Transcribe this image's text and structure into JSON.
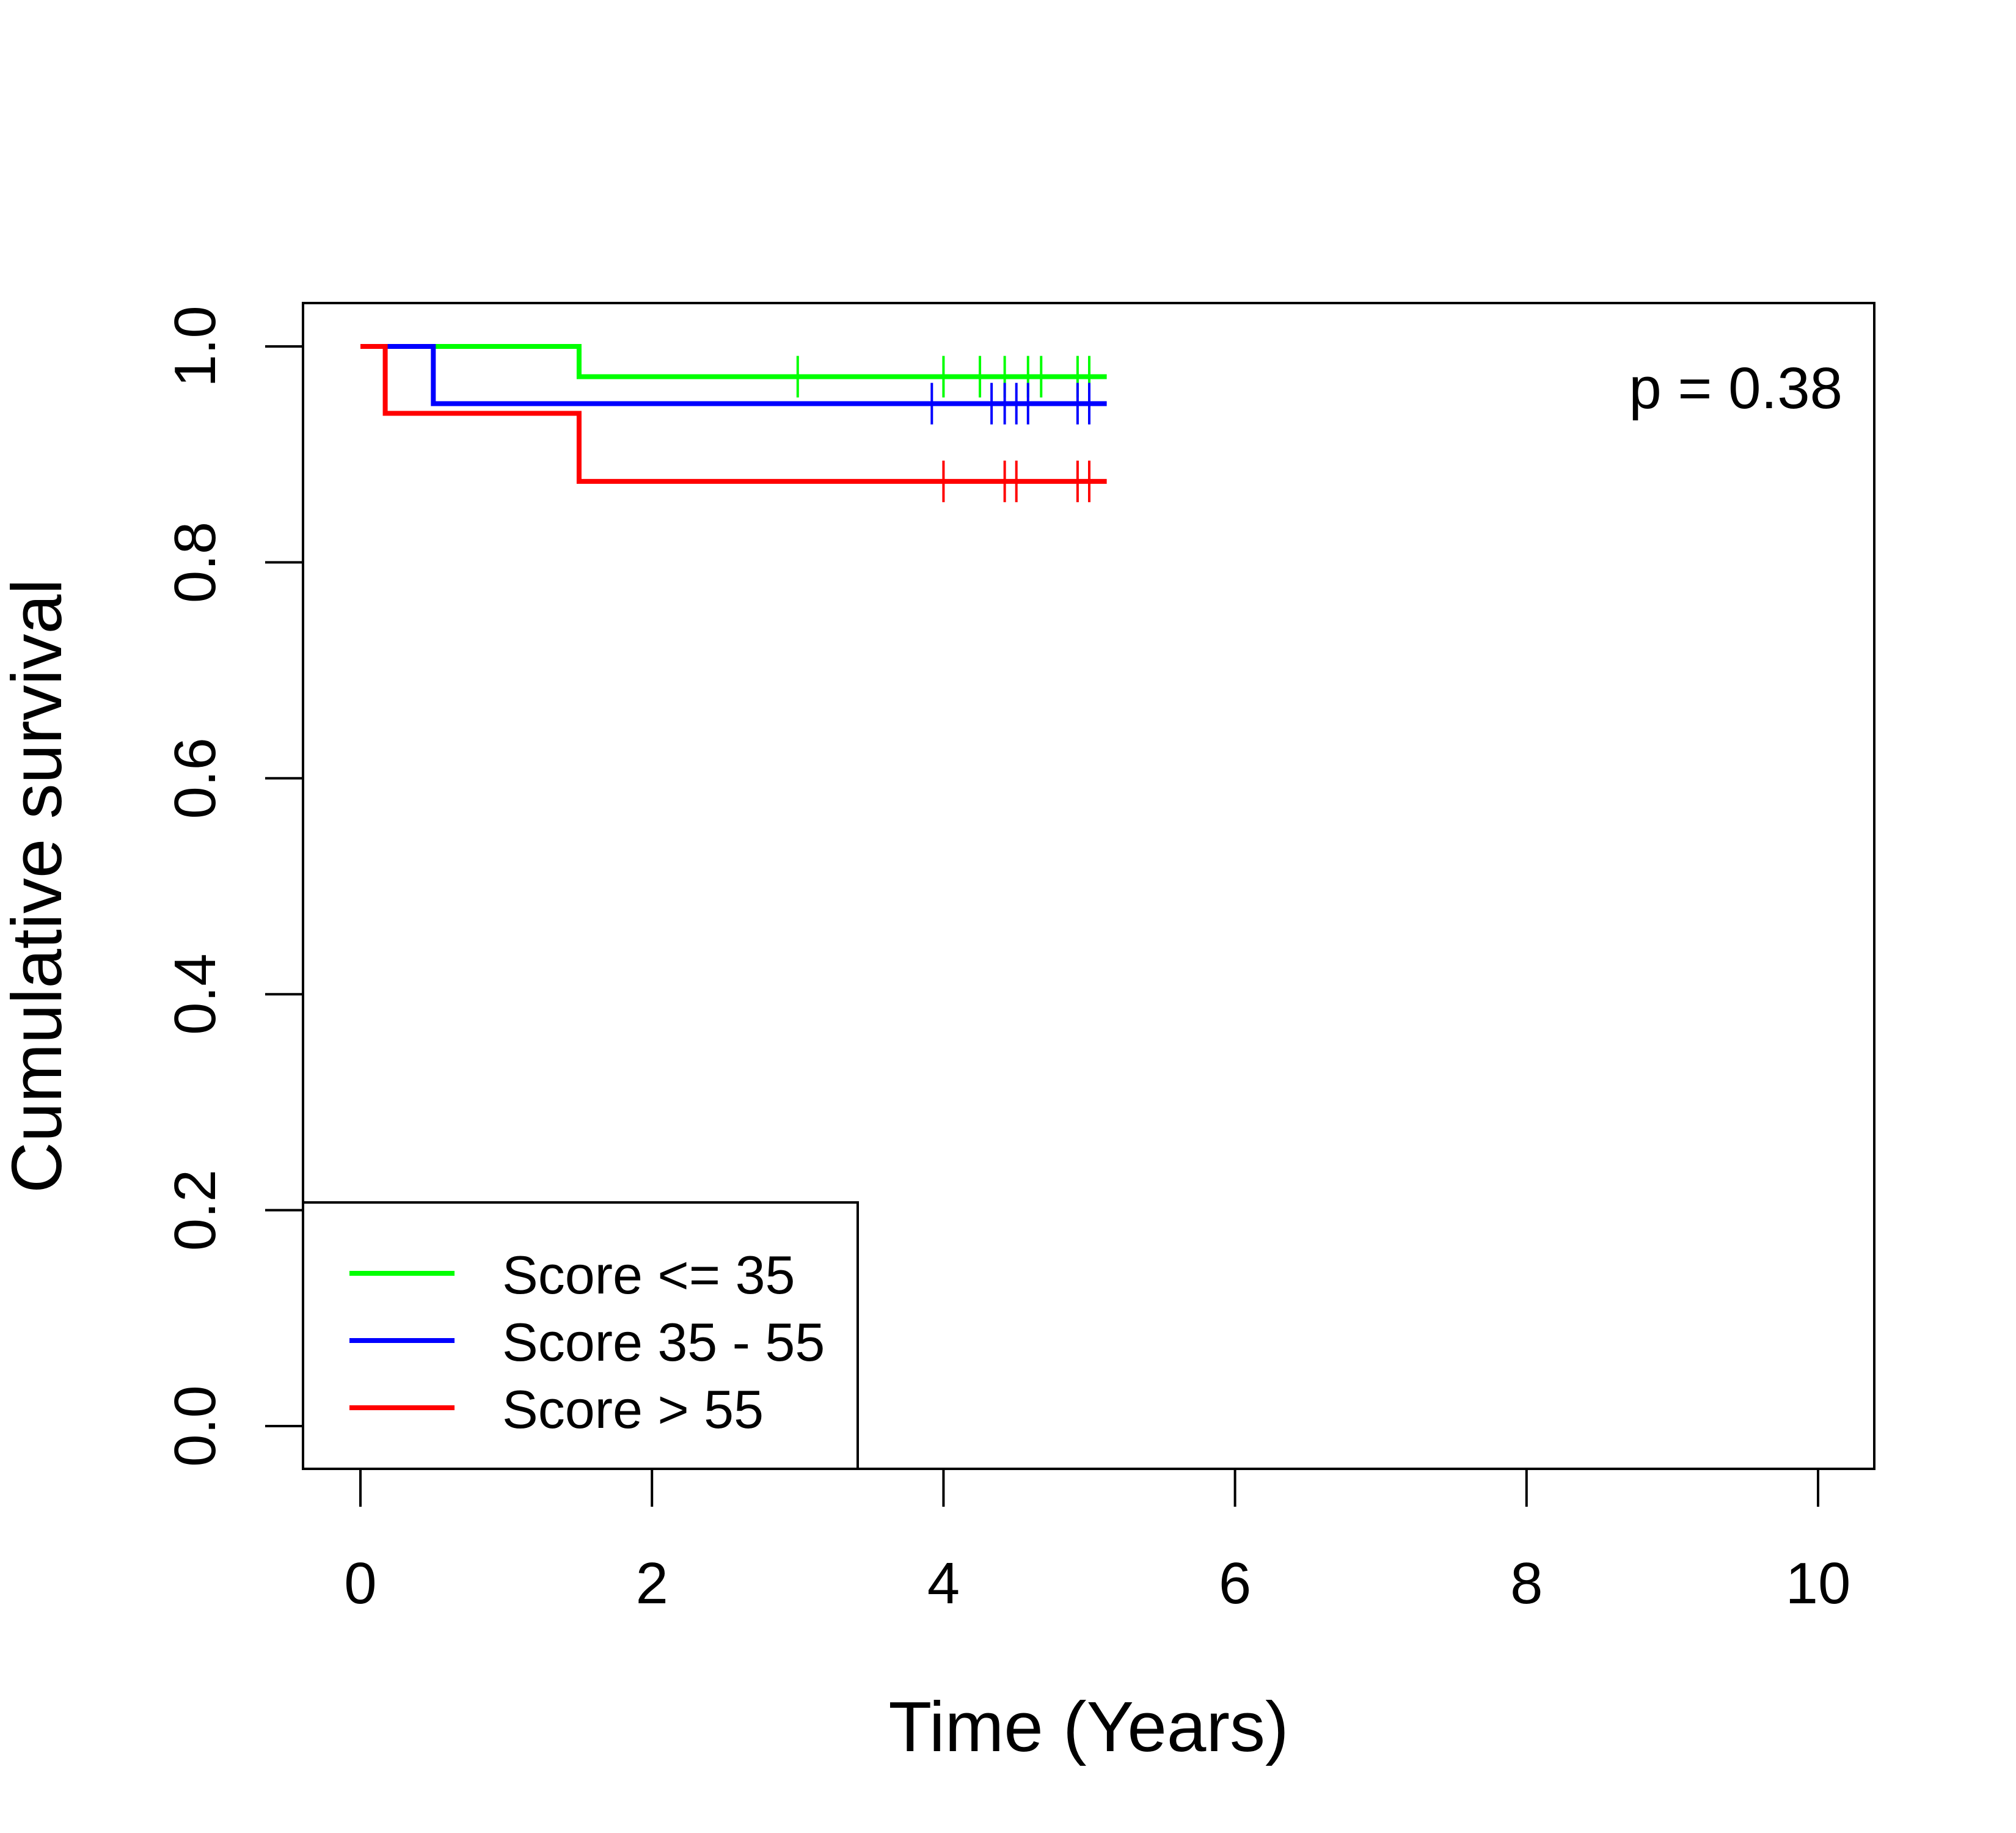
{
  "chart_data": {
    "type": "line",
    "subtype": "kaplan-meier step",
    "xlabel": "Time (Years)",
    "ylabel": "Cumulative survival",
    "xlim": [
      0,
      10
    ],
    "ylim": [
      0,
      1
    ],
    "xticks": [
      0,
      2,
      4,
      6,
      8,
      10
    ],
    "yticks": [
      0.0,
      0.2,
      0.4,
      0.6,
      0.8,
      1.0
    ],
    "ytick_labels": [
      "0.0",
      "0.2",
      "0.4",
      "0.6",
      "0.8",
      "1.0"
    ],
    "grid": false,
    "annotation": "p = 0.38",
    "legend_position": "bottom-left",
    "series": [
      {
        "name": "Score <= 35",
        "color": "#00ff00",
        "steps": [
          [
            0,
            1.0
          ],
          [
            1.5,
            0.972
          ]
        ],
        "end_time": 5.12,
        "censor_times": [
          3.0,
          4.0,
          4.25,
          4.42,
          4.58,
          4.67,
          4.92,
          5.0
        ]
      },
      {
        "name": "Score 35 - 55",
        "color": "#0000ff",
        "steps": [
          [
            0,
            1.0
          ],
          [
            0.5,
            0.947
          ]
        ],
        "end_time": 5.12,
        "censor_times": [
          3.92,
          4.33,
          4.42,
          4.5,
          4.58,
          4.92,
          5.0
        ]
      },
      {
        "name": "Score > 55",
        "color": "#ff0000",
        "steps": [
          [
            0,
            1.0
          ],
          [
            0.17,
            0.938
          ],
          [
            1.5,
            0.875
          ]
        ],
        "end_time": 5.12,
        "censor_times": [
          4.0,
          4.42,
          4.5,
          4.92,
          5.0
        ]
      }
    ]
  }
}
